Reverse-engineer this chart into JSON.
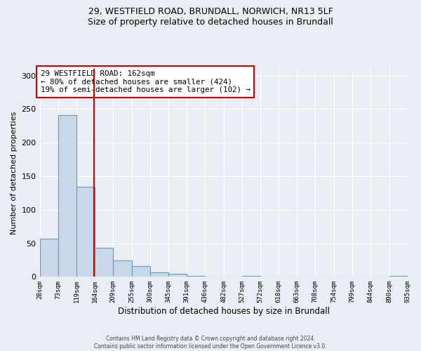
{
  "title_line1": "29, WESTFIELD ROAD, BRUNDALL, NORWICH, NR13 5LF",
  "title_line2": "Size of property relative to detached houses in Brundall",
  "xlabel": "Distribution of detached houses by size in Brundall",
  "ylabel": "Number of detached properties",
  "bin_edges": [
    28,
    73,
    119,
    164,
    209,
    255,
    300,
    345,
    391,
    436,
    482,
    527,
    572,
    618,
    663,
    708,
    754,
    799,
    844,
    890,
    935
  ],
  "bin_labels": [
    "28sqm",
    "73sqm",
    "119sqm",
    "164sqm",
    "209sqm",
    "255sqm",
    "300sqm",
    "345sqm",
    "391sqm",
    "436sqm",
    "482sqm",
    "527sqm",
    "572sqm",
    "618sqm",
    "663sqm",
    "708sqm",
    "754sqm",
    "799sqm",
    "844sqm",
    "890sqm",
    "935sqm"
  ],
  "bar_heights": [
    57,
    241,
    134,
    43,
    24,
    16,
    7,
    5,
    1,
    0,
    0,
    1,
    0,
    0,
    0,
    0,
    0,
    0,
    0,
    1
  ],
  "bar_color": "#c8d8e8",
  "bar_edge_color": "#6699bb",
  "property_line_x": 162,
  "property_line_color": "#cc0000",
  "annotation_text": "29 WESTFIELD ROAD: 162sqm\n← 80% of detached houses are smaller (424)\n19% of semi-detached houses are larger (102) →",
  "annotation_box_color": "#ffffff",
  "annotation_box_edge_color": "#cc0000",
  "ylim": [
    0,
    310
  ],
  "yticks": [
    0,
    50,
    100,
    150,
    200,
    250,
    300
  ],
  "footer_line1": "Contains HM Land Registry data © Crown copyright and database right 2024.",
  "footer_line2": "Contains public sector information licensed under the Open Government Licence v3.0.",
  "background_color": "#e8eef4",
  "grid_color": "#ffffff"
}
